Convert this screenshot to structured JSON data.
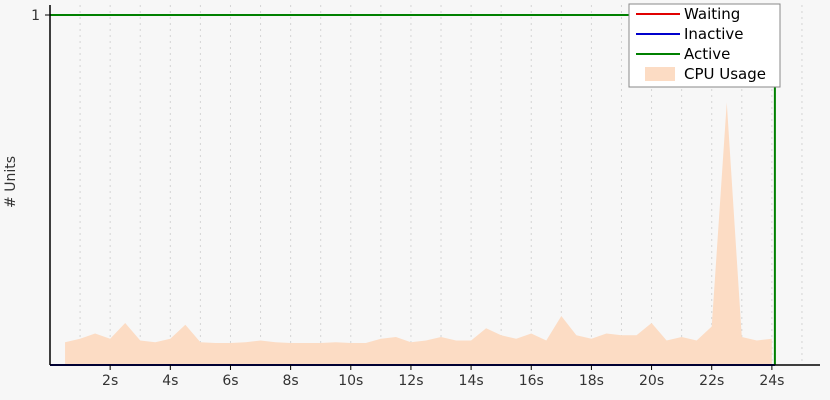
{
  "chart_data": {
    "type": "line",
    "ylabel": "# Units",
    "xlabel": "",
    "x_tick_labels": [
      "2s",
      "4s",
      "6s",
      "8s",
      "10s",
      "12s",
      "14s",
      "16s",
      "18s",
      "20s",
      "22s",
      "24s"
    ],
    "x_ticks": [
      2,
      4,
      6,
      8,
      10,
      12,
      14,
      16,
      18,
      20,
      22,
      24
    ],
    "y_tick_labels": [
      "1"
    ],
    "y_ticks": [
      1
    ],
    "xlim": [
      0,
      25.6
    ],
    "ylim": [
      0,
      1
    ],
    "grid": "vertical dotted",
    "legend_position": "top-right",
    "series": [
      {
        "name": "Waiting",
        "color": "#e00000",
        "x": [
          0,
          24.1
        ],
        "y": [
          0,
          0
        ]
      },
      {
        "name": "Inactive",
        "color": "#0000cc",
        "x": [
          0,
          24.1
        ],
        "y": [
          0,
          0
        ]
      },
      {
        "name": "Active",
        "color": "#008000",
        "x": [
          0,
          24.1,
          24.1
        ],
        "y": [
          1,
          1,
          0
        ]
      },
      {
        "name": "CPU Usage",
        "color": "#fcdcc4",
        "type": "area",
        "x": [
          0.5,
          1.0,
          1.5,
          2.0,
          2.5,
          3.0,
          3.5,
          4.0,
          4.5,
          5.0,
          5.5,
          6.0,
          6.5,
          7.0,
          7.5,
          8.0,
          8.5,
          9.0,
          9.5,
          10.0,
          10.5,
          11.0,
          11.5,
          12.0,
          12.5,
          13.0,
          13.5,
          14.0,
          14.5,
          15.0,
          15.5,
          16.0,
          16.5,
          17.0,
          17.5,
          18.0,
          18.5,
          19.0,
          19.5,
          20.0,
          20.5,
          21.0,
          21.5,
          22.0,
          22.5,
          23.0,
          23.5,
          24.0
        ],
        "y": [
          0.065,
          0.075,
          0.09,
          0.075,
          0.12,
          0.07,
          0.065,
          0.075,
          0.115,
          0.065,
          0.063,
          0.063,
          0.065,
          0.07,
          0.065,
          0.063,
          0.063,
          0.063,
          0.065,
          0.063,
          0.063,
          0.075,
          0.08,
          0.065,
          0.07,
          0.08,
          0.07,
          0.07,
          0.105,
          0.085,
          0.075,
          0.09,
          0.07,
          0.14,
          0.085,
          0.075,
          0.09,
          0.085,
          0.085,
          0.12,
          0.07,
          0.08,
          0.07,
          0.11,
          0.75,
          0.08,
          0.07,
          0.075
        ]
      }
    ]
  }
}
